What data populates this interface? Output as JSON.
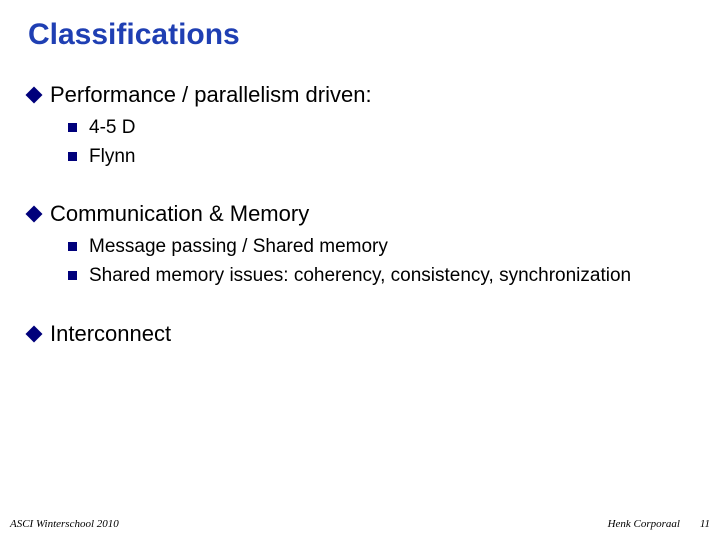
{
  "title": "Classifications",
  "sections": [
    {
      "heading": "Performance / parallelism driven:",
      "items": [
        "4-5 D",
        "Flynn"
      ]
    },
    {
      "heading": "Communication & Memory",
      "items": [
        "Message passing / Shared memory",
        "Shared memory issues: coherency, consistency, synchronization"
      ]
    },
    {
      "heading": "Interconnect",
      "items": []
    }
  ],
  "footer_left": "ASCI Winterschool 2010",
  "footer_right": "Henk Corporaal",
  "page_number": "11",
  "colors": {
    "title": "#1f3fb3",
    "bullet": "#00007b",
    "text": "#000000",
    "background": "#ffffff"
  },
  "typography": {
    "title_fontsize": 30,
    "heading_fontsize": 22,
    "item_fontsize": 19,
    "footer_fontsize": 11
  }
}
